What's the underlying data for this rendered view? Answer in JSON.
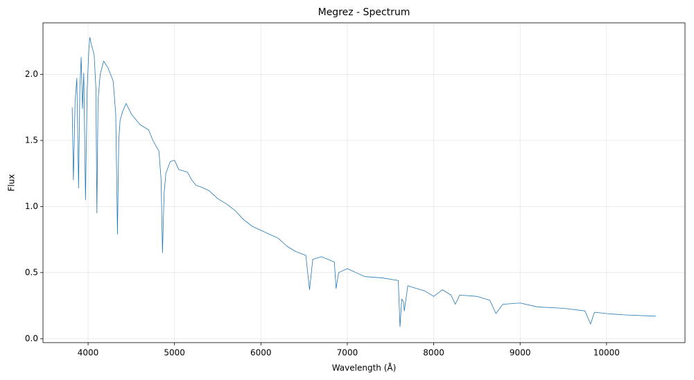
{
  "chart_data": {
    "type": "line",
    "title": "Megrez - Spectrum",
    "x_label": "Wavelength (Å)",
    "y_label": "Flux",
    "color": "#1f77b4",
    "grid": true,
    "x": [
      3816,
      3830,
      3850,
      3870,
      3890,
      3905,
      3920,
      3935,
      3950,
      3970,
      3990,
      4010,
      4020,
      4040,
      4070,
      4090,
      4102,
      4115,
      4140,
      4180,
      4230,
      4290,
      4320,
      4340,
      4355,
      4370,
      4400,
      4440,
      4500,
      4600,
      4700,
      4750,
      4820,
      4845,
      4861,
      4880,
      4900,
      4950,
      5000,
      5050,
      5150,
      5200,
      5250,
      5300,
      5400,
      5500,
      5600,
      5700,
      5800,
      5900,
      6000,
      6100,
      6200,
      6300,
      6400,
      6520,
      6563,
      6600,
      6700,
      6850,
      6870,
      6900,
      7000,
      7100,
      7200,
      7400,
      7590,
      7610,
      7630,
      7650,
      7660,
      7700,
      7800,
      7900,
      8000,
      8100,
      8200,
      8250,
      8300,
      8500,
      8650,
      8720,
      8800,
      9000,
      9200,
      9500,
      9750,
      9815,
      9860,
      10000,
      10200,
      10570
    ],
    "values": [
      1.75,
      1.2,
      1.8,
      1.97,
      1.14,
      1.9,
      2.13,
      1.74,
      2.01,
      1.05,
      1.9,
      2.2,
      2.28,
      2.22,
      2.15,
      1.9,
      0.95,
      1.8,
      2.0,
      2.1,
      2.05,
      1.95,
      1.7,
      0.79,
      1.5,
      1.65,
      1.72,
      1.78,
      1.7,
      1.62,
      1.58,
      1.5,
      1.42,
      1.2,
      0.65,
      1.1,
      1.25,
      1.34,
      1.35,
      1.28,
      1.26,
      1.2,
      1.16,
      1.15,
      1.12,
      1.06,
      1.02,
      0.97,
      0.9,
      0.85,
      0.82,
      0.79,
      0.76,
      0.7,
      0.66,
      0.63,
      0.37,
      0.6,
      0.62,
      0.58,
      0.38,
      0.5,
      0.53,
      0.5,
      0.47,
      0.46,
      0.44,
      0.09,
      0.3,
      0.28,
      0.21,
      0.4,
      0.38,
      0.36,
      0.32,
      0.37,
      0.33,
      0.26,
      0.33,
      0.32,
      0.29,
      0.19,
      0.26,
      0.27,
      0.24,
      0.23,
      0.21,
      0.11,
      0.2,
      0.19,
      0.18,
      0.17
    ],
    "xlim": [
      3478,
      10908
    ],
    "ylim": [
      -0.03,
      2.39
    ],
    "xticks": [
      4000,
      5000,
      6000,
      7000,
      8000,
      9000,
      10000
    ],
    "yticks": [
      {
        "value": 0,
        "label": "0.0"
      },
      0.5,
      {
        "value": 1,
        "label": "1.0"
      },
      1.5,
      {
        "value": 2,
        "label": "2.0"
      }
    ]
  }
}
